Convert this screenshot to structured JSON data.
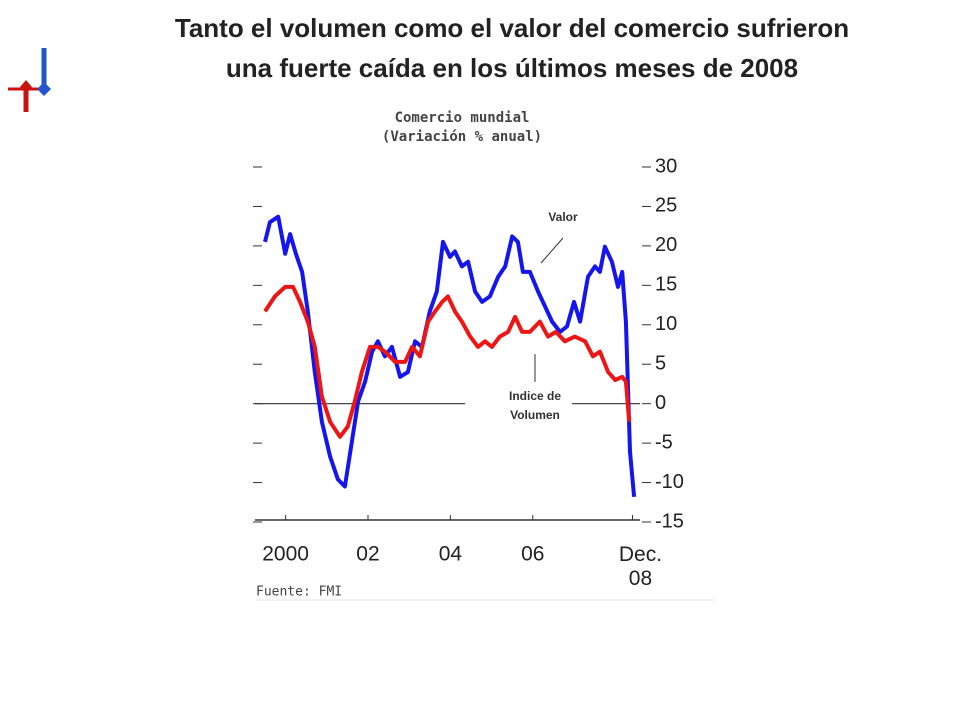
{
  "chart_data": {
    "type": "line",
    "title": [
      "Tanto el volumen como el valor del comercio sufrieron",
      "una fuerte caída en los últimos meses de 2008"
    ],
    "subtitle": [
      "Comercio mundial",
      "(Variación % anual)"
    ],
    "source": "Fuente: FMI",
    "annotations": [
      "Valor",
      "Indice de",
      "Volumen"
    ],
    "xlim": [
      2000,
      2009.2
    ],
    "xticks": [
      {
        "value": 2000.5,
        "label": "2000"
      },
      {
        "value": 2002.5,
        "label": "02"
      },
      {
        "value": 2004.5,
        "label": "04"
      },
      {
        "value": 2006.5,
        "label": "06"
      },
      {
        "value": 2008.92,
        "label": "Dec. 08"
      }
    ],
    "ylim": [
      -15,
      30
    ],
    "yticks": [
      -15,
      -10,
      -5,
      0,
      5,
      10,
      15,
      20,
      25,
      30
    ],
    "series": [
      {
        "name": "Valor",
        "color": "#1515ee",
        "x": [
          2000.0,
          2000.12,
          2000.32,
          2000.49,
          2000.61,
          2000.75,
          2000.9,
          2001.04,
          2001.21,
          2001.38,
          2001.58,
          2001.77,
          2001.94,
          2002.11,
          2002.26,
          2002.43,
          2002.6,
          2002.74,
          2002.91,
          2003.08,
          2003.28,
          2003.47,
          2003.64,
          2003.81,
          2004.0,
          2004.17,
          2004.32,
          2004.49,
          2004.61,
          2004.78,
          2004.93,
          2005.1,
          2005.27,
          2005.46,
          2005.66,
          2005.83,
          2006.0,
          2006.14,
          2006.26,
          2006.43,
          2006.63,
          2006.8,
          2006.97,
          2007.16,
          2007.33,
          2007.5,
          2007.65,
          2007.84,
          2008.01,
          2008.13,
          2008.25,
          2008.42,
          2008.57,
          2008.67,
          2008.76,
          2008.86,
          2008.96
        ],
        "values": [
          20.5,
          23,
          23.7,
          19,
          21.5,
          19,
          16.7,
          11.7,
          4,
          -2.3,
          -6.7,
          -9.6,
          -10.5,
          -4.8,
          0.3,
          2.8,
          6.6,
          7.9,
          6,
          7.2,
          3.4,
          4,
          7.9,
          7.2,
          11.7,
          14.2,
          20.5,
          18.6,
          19.3,
          17.4,
          18,
          14.2,
          12.9,
          13.6,
          16.1,
          17.4,
          21.2,
          20.5,
          16.7,
          16.7,
          14.2,
          12.3,
          10.4,
          9.1,
          9.8,
          12.9,
          10.4,
          16.1,
          17.4,
          16.7,
          19.9,
          18,
          14.8,
          16.7,
          10.4,
          -6.1,
          -11.8
        ]
      },
      {
        "name": "Indice de Volumen",
        "color": "#ee1515",
        "x": [
          2000.0,
          2000.24,
          2000.49,
          2000.68,
          2000.85,
          2001.04,
          2001.21,
          2001.38,
          2001.58,
          2001.82,
          2002.01,
          2002.18,
          2002.35,
          2002.55,
          2002.74,
          2002.91,
          2003.16,
          2003.4,
          2003.57,
          2003.76,
          2003.96,
          2004.13,
          2004.3,
          2004.44,
          2004.61,
          2004.78,
          2004.98,
          2005.17,
          2005.34,
          2005.51,
          2005.7,
          2005.9,
          2006.07,
          2006.24,
          2006.43,
          2006.67,
          2006.87,
          2007.06,
          2007.28,
          2007.52,
          2007.77,
          2007.96,
          2008.13,
          2008.33,
          2008.5,
          2008.67,
          2008.76,
          2008.84
        ],
        "values": [
          11.7,
          13.6,
          14.8,
          14.8,
          12.9,
          10.4,
          7.2,
          0.9,
          -2.3,
          -4.2,
          -2.9,
          0.3,
          4,
          7.2,
          7.2,
          6.6,
          5.3,
          5.3,
          7.2,
          6,
          10.4,
          11.7,
          12.9,
          13.6,
          11.7,
          10.4,
          8.5,
          7.2,
          7.9,
          7.2,
          8.5,
          9.1,
          11,
          9.1,
          9.1,
          10.4,
          8.5,
          9.1,
          7.9,
          8.5,
          7.9,
          6,
          6.6,
          4,
          3,
          3.4,
          2.8,
          -2.3
        ]
      }
    ]
  }
}
